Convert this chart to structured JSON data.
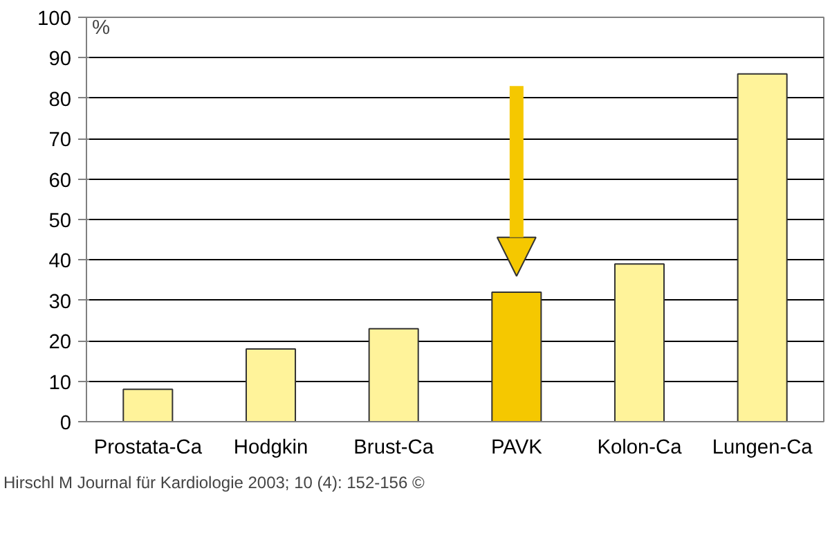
{
  "chart_data": {
    "type": "bar",
    "ylabel": "%",
    "categories": [
      "Prostata-Ca",
      "Hodgkin",
      "Brust-Ca",
      "PAVK",
      "Kolon-Ca",
      "Lungen-Ca"
    ],
    "values": [
      8,
      18,
      23,
      32,
      39,
      86
    ],
    "colors": [
      "#fff39a",
      "#fff39a",
      "#fff39a",
      "#f5c800",
      "#fff39a",
      "#fff39a"
    ],
    "ylim": [
      0,
      100
    ],
    "yticks": [
      0,
      10,
      20,
      30,
      40,
      50,
      60,
      70,
      80,
      90,
      100
    ],
    "grid": "y",
    "annotations": [
      "Hirschl M Journal für Kardiologie 2003; 10 (4): 152-156 ©"
    ]
  }
}
